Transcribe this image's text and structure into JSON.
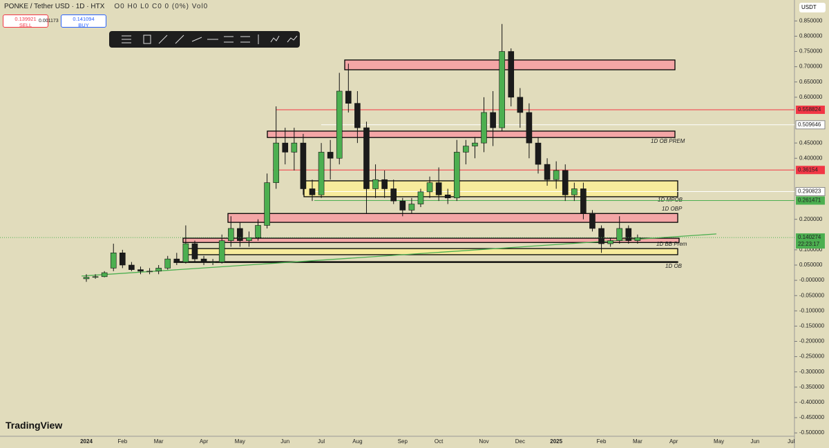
{
  "header": {
    "symbol": "PONKE / Tether USD · 1D · HTX",
    "ohlc": "O0 H0 L0 C0 0 (0%) Vol0",
    "sell_price": "0.139921",
    "sell": "SELL",
    "spread": "0.001173",
    "buy_price": "0.141094",
    "buy": "BUY",
    "currency": "USDT",
    "brand": "TradingView"
  },
  "chart_data": {
    "type": "candlestick",
    "categories": [
      "2024",
      null,
      null,
      null,
      "Feb",
      null,
      null,
      null,
      "Mar",
      null,
      null,
      null,
      null,
      "Apr",
      null,
      null,
      null,
      "May",
      null,
      null,
      null,
      null,
      "Jun",
      null,
      null,
      null,
      "Jul",
      null,
      null,
      null,
      "Aug",
      null,
      null,
      null,
      null,
      "Sep",
      null,
      null,
      null,
      "Oct",
      null,
      null,
      null,
      null,
      "Nov",
      null,
      null,
      null,
      "Dec",
      null,
      null,
      null,
      "2025",
      null,
      null,
      null,
      null,
      "Feb",
      null,
      null,
      null,
      "Mar",
      null,
      null,
      null,
      "Apr",
      null,
      null,
      null,
      null,
      "May",
      null,
      null,
      null,
      "Jun",
      null,
      null,
      null,
      "Jul"
    ],
    "open": [
      0.005,
      0.01,
      0.012,
      0.04,
      0.09,
      0.05,
      0.035,
      0.03,
      0.03,
      0.04,
      0.07,
      0.06,
      0.12,
      0.07,
      0.06,
      0.06,
      0.13,
      0.17,
      0.13,
      0.14,
      0.18,
      0.32,
      0.45,
      0.42,
      0.45,
      0.3,
      0.28,
      0.42,
      0.4,
      0.62,
      0.58,
      0.5,
      0.3,
      0.33,
      0.3,
      0.26,
      0.23,
      0.25,
      0.29,
      0.32,
      0.28,
      0.27,
      0.42,
      0.44,
      0.45,
      0.55,
      0.5,
      0.75,
      0.6,
      0.55,
      0.45,
      0.38,
      0.33,
      0.36,
      0.28,
      0.3,
      0.22,
      0.17,
      0.12,
      0.13,
      0.17,
      0.13,
      null,
      null,
      null,
      null,
      null,
      null,
      null,
      null,
      null,
      null,
      null,
      null,
      null,
      null,
      null,
      null,
      null
    ],
    "high": [
      0.02,
      0.02,
      0.03,
      0.12,
      0.1,
      0.06,
      0.045,
      0.04,
      0.05,
      0.08,
      0.09,
      0.18,
      0.13,
      0.08,
      0.07,
      0.15,
      0.21,
      0.19,
      0.16,
      0.2,
      0.35,
      0.57,
      0.5,
      0.5,
      0.48,
      0.33,
      0.45,
      0.46,
      0.68,
      0.71,
      0.62,
      0.52,
      0.38,
      0.36,
      0.33,
      0.27,
      0.27,
      0.3,
      0.34,
      0.37,
      0.3,
      0.46,
      0.46,
      0.47,
      0.6,
      0.62,
      0.84,
      0.76,
      0.63,
      0.58,
      0.47,
      0.4,
      0.39,
      0.38,
      0.32,
      0.32,
      0.23,
      0.18,
      0.14,
      0.21,
      0.18,
      0.15,
      null,
      null,
      null,
      null,
      null,
      null,
      null,
      null,
      null,
      null,
      null,
      null,
      null,
      null,
      null,
      null,
      null
    ],
    "low": [
      -0.005,
      0.005,
      0.01,
      0.03,
      0.04,
      0.03,
      0.02,
      0.02,
      0.02,
      0.035,
      0.05,
      0.055,
      0.06,
      0.05,
      0.05,
      0.055,
      0.11,
      0.11,
      0.11,
      0.13,
      0.17,
      0.3,
      0.38,
      0.36,
      0.28,
      0.26,
      0.27,
      0.33,
      0.38,
      0.55,
      0.45,
      0.22,
      0.27,
      0.27,
      0.25,
      0.21,
      0.22,
      0.24,
      0.27,
      0.26,
      0.25,
      0.26,
      0.38,
      0.4,
      0.42,
      0.44,
      0.49,
      0.57,
      0.5,
      0.4,
      0.35,
      0.31,
      0.3,
      0.26,
      0.26,
      0.2,
      0.16,
      0.09,
      0.11,
      0.12,
      0.12,
      0.12,
      null,
      null,
      null,
      null,
      null,
      null,
      null,
      null,
      null,
      null,
      null,
      null,
      null,
      null,
      null,
      null,
      null
    ],
    "close": [
      0.01,
      0.012,
      0.025,
      0.09,
      0.05,
      0.035,
      0.03,
      0.03,
      0.04,
      0.07,
      0.06,
      0.12,
      0.07,
      0.06,
      0.06,
      0.13,
      0.17,
      0.13,
      0.14,
      0.18,
      0.32,
      0.45,
      0.42,
      0.45,
      0.3,
      0.28,
      0.42,
      0.4,
      0.62,
      0.58,
      0.5,
      0.3,
      0.33,
      0.3,
      0.26,
      0.23,
      0.25,
      0.29,
      0.32,
      0.28,
      0.27,
      0.42,
      0.44,
      0.45,
      0.55,
      0.5,
      0.75,
      0.6,
      0.55,
      0.45,
      0.38,
      0.33,
      0.36,
      0.28,
      0.3,
      0.22,
      0.17,
      0.12,
      0.13,
      0.17,
      0.13,
      0.14,
      null,
      null,
      null,
      null,
      null,
      null,
      null,
      null,
      null,
      null,
      null,
      null,
      null,
      null,
      null,
      null,
      null
    ],
    "up_color": "#4caf50",
    "down_color": "#1b1b1b",
    "ylim": [
      -0.511,
      0.9186
    ],
    "yticks": [
      {
        "value": 0.85,
        "label": "0.850000"
      },
      {
        "value": 0.8,
        "label": "0.800000"
      },
      {
        "value": 0.75,
        "label": "0.750000"
      },
      {
        "value": 0.7,
        "label": "0.700000"
      },
      {
        "value": 0.65,
        "label": "0.650000"
      },
      {
        "value": 0.6,
        "label": "0.600000"
      },
      {
        "value": 0.45,
        "label": "0.450000"
      },
      {
        "value": 0.4,
        "label": "0.400000"
      },
      {
        "value": 0.2,
        "label": "0.200000"
      },
      {
        "value": 0.1,
        "label": "0.100000"
      },
      {
        "value": 0.05,
        "label": "0.050000"
      },
      {
        "value": 0,
        "label": "-0.000000"
      },
      {
        "value": -0.05,
        "label": "-0.050000"
      },
      {
        "value": -0.1,
        "label": "-0.100000"
      },
      {
        "value": -0.15,
        "label": "-0.150000"
      },
      {
        "value": -0.2,
        "label": "-0.200000"
      },
      {
        "value": -0.25,
        "label": "-0.250000"
      },
      {
        "value": -0.3,
        "label": "-0.300000"
      },
      {
        "value": -0.35,
        "label": "-0.350000"
      },
      {
        "value": -0.4,
        "label": "-0.400000"
      },
      {
        "value": -0.45,
        "label": "-0.450000"
      },
      {
        "value": -0.5,
        "label": "-0.500000"
      }
    ],
    "levels": [
      {
        "value": 0.558824,
        "color": "#f23645"
      },
      {
        "value": 0.509646,
        "color": "#ffffff"
      },
      {
        "value": 0.36154,
        "color": "#f23645"
      },
      {
        "value": 0.290823,
        "color": "#ffffff"
      },
      {
        "value": 0.261471,
        "color": "#4caf50"
      }
    ],
    "last_price": {
      "value": 0.140274,
      "countdown": "22:23:17",
      "color": "#4caf50"
    },
    "zones": [
      {
        "top": 0.722,
        "bottom": 0.69,
        "color": "#f4a6a6"
      },
      {
        "top": 0.489,
        "bottom": 0.468,
        "color": "#f4a6a6",
        "label": "1D OB PREM"
      },
      {
        "top": 0.326,
        "bottom": 0.274,
        "color": "#f7eb9c",
        "label": "1D MPOB"
      },
      {
        "top": 0.219,
        "bottom": 0.19,
        "color": "#f4a6a6",
        "label": "1D OBP"
      },
      {
        "top": 0.138,
        "bottom": 0.124,
        "color": "#f4a6a6",
        "label": "1D BB Prem"
      },
      {
        "top": 0.104,
        "bottom": 0.084,
        "color": "#f7eb9c"
      },
      {
        "top": 0.061,
        "bottom": 0.059,
        "color": "#e1dcbc",
        "label": "1D OB"
      }
    ],
    "trendline": {
      "values": [
        0.014,
        0.152
      ],
      "color": "#4caf50"
    }
  }
}
